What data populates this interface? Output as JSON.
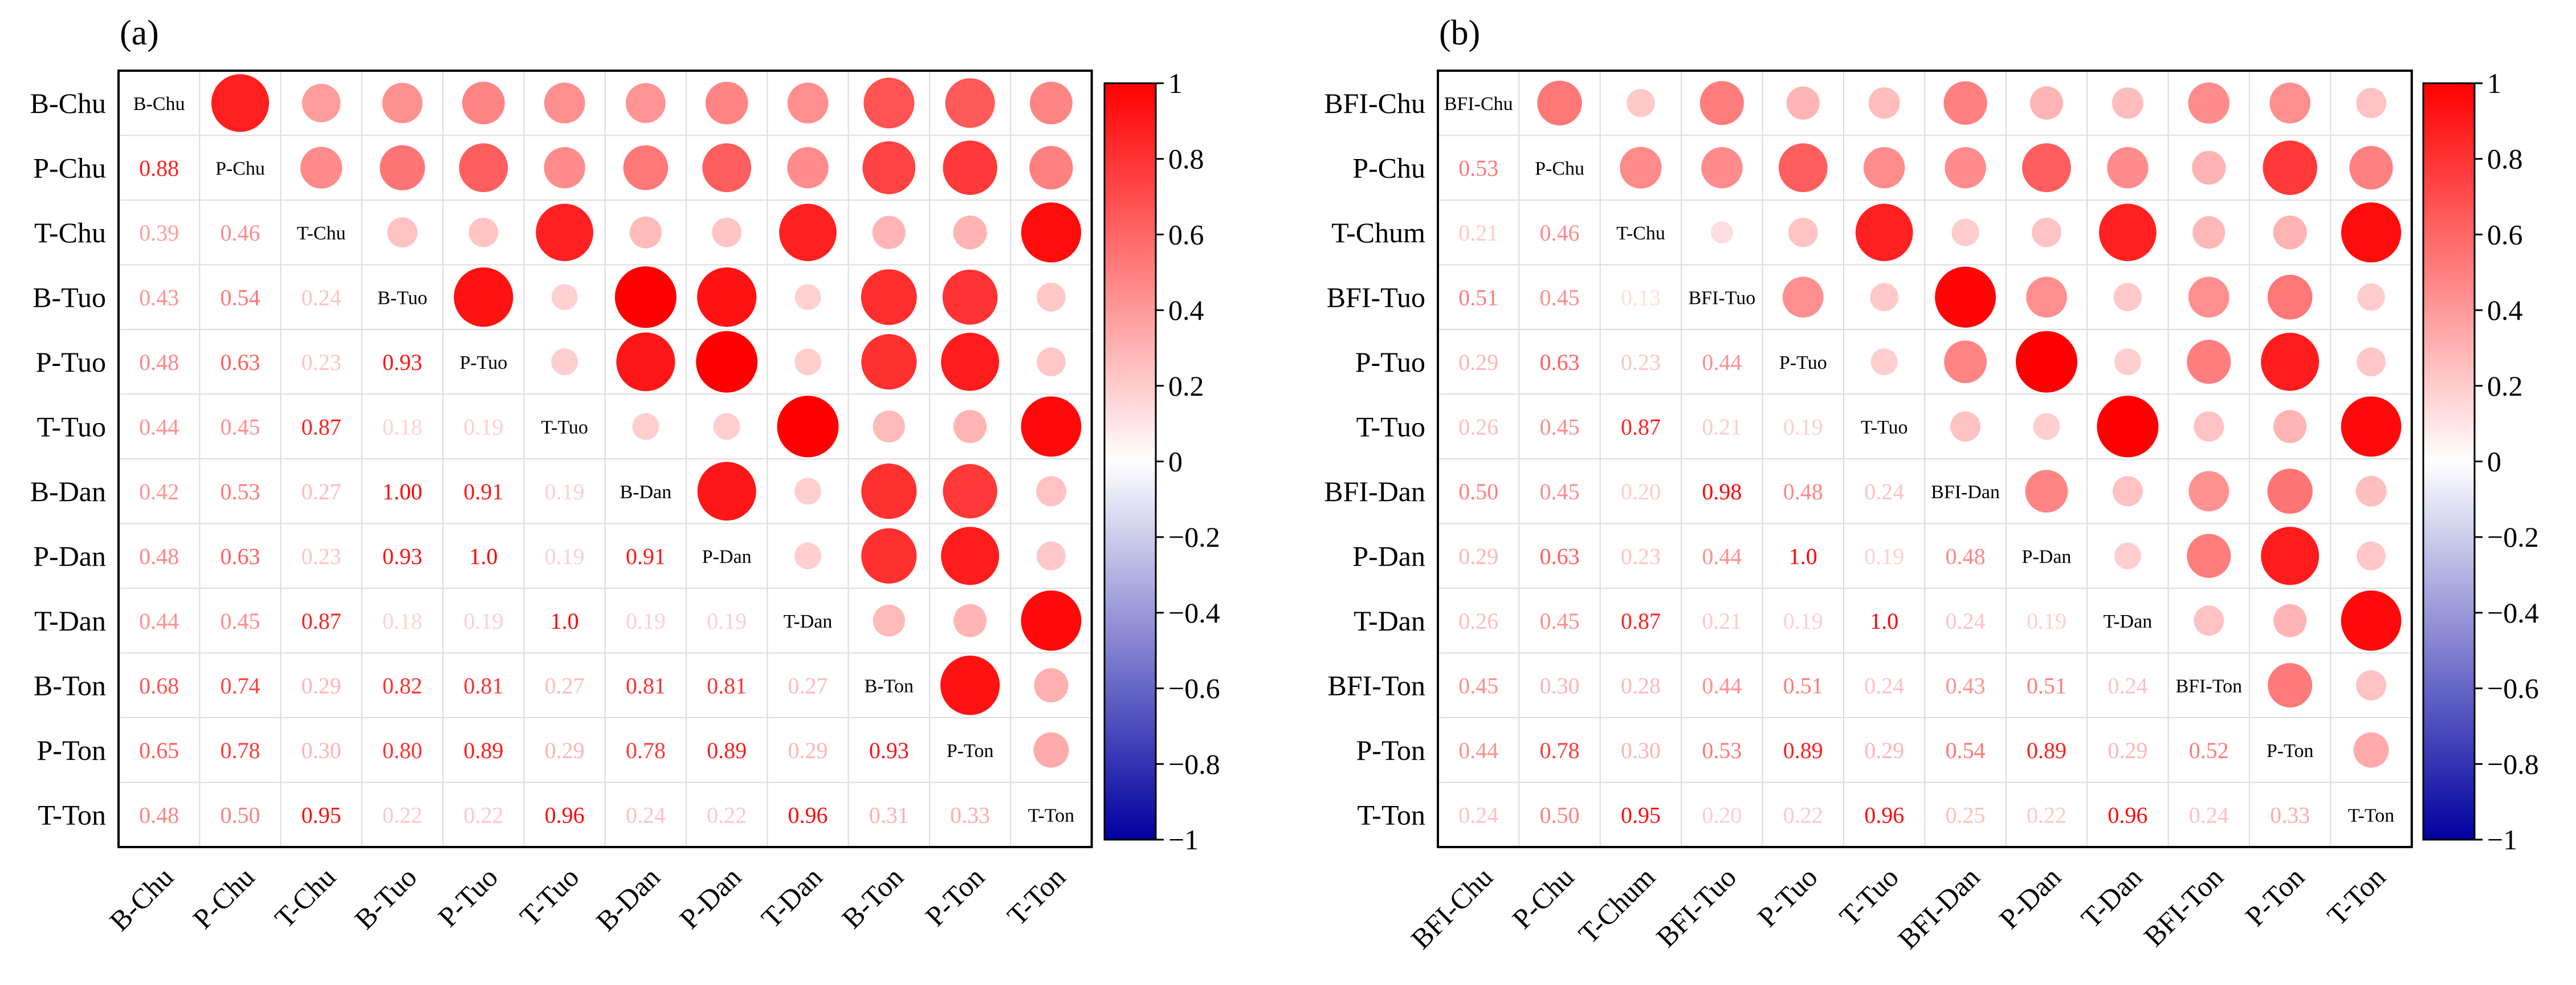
{
  "chart_data": [
    {
      "type": "heatmap",
      "panel_label": "(a)",
      "labels": [
        "B-Chu",
        "P-Chu",
        "T-Chu",
        "B-Tuo",
        "P-Tuo",
        "T-Tuo",
        "B-Dan",
        "P-Dan",
        "T-Dan",
        "B-Ton",
        "P-Ton",
        "T-Ton"
      ],
      "value_text": [
        [
          "",
          "",
          "",
          "",
          "",
          "",
          "",
          "",
          "",
          "",
          "",
          ""
        ],
        [
          "0.88",
          "",
          "",
          "",
          "",
          "",
          "",
          "",
          "",
          "",
          "",
          ""
        ],
        [
          "0.39",
          "0.46",
          "",
          "",
          "",
          "",
          "",
          "",
          "",
          "",
          "",
          ""
        ],
        [
          "0.43",
          "0.54",
          "0.24",
          "",
          "",
          "",
          "",
          "",
          "",
          "",
          "",
          ""
        ],
        [
          "0.48",
          "0.63",
          "0.23",
          "0.93",
          "",
          "",
          "",
          "",
          "",
          "",
          "",
          ""
        ],
        [
          "0.44",
          "0.45",
          "0.87",
          "0.18",
          "0.19",
          "",
          "",
          "",
          "",
          "",
          "",
          ""
        ],
        [
          "0.42",
          "0.53",
          "0.27",
          "1.00",
          "0.91",
          "0.19",
          "",
          "",
          "",
          "",
          "",
          ""
        ],
        [
          "0.48",
          "0.63",
          "0.23",
          "0.93",
          "1.0",
          "0.19",
          "0.91",
          "",
          "",
          "",
          "",
          ""
        ],
        [
          "0.44",
          "0.45",
          "0.87",
          "0.18",
          "0.19",
          "1.0",
          "0.19",
          "0.19",
          "",
          "",
          "",
          ""
        ],
        [
          "0.68",
          "0.74",
          "0.29",
          "0.82",
          "0.81",
          "0.27",
          "0.81",
          "0.81",
          "0.27",
          "",
          "",
          ""
        ],
        [
          "0.65",
          "0.78",
          "0.30",
          "0.80",
          "0.89",
          "0.29",
          "0.78",
          "0.89",
          "0.29",
          "0.93",
          "",
          ""
        ],
        [
          "0.48",
          "0.50",
          "0.95",
          "0.22",
          "0.22",
          "0.96",
          "0.24",
          "0.22",
          "0.96",
          "0.31",
          "0.33",
          ""
        ]
      ],
      "colorbar": {
        "range": [
          -1,
          1
        ],
        "ticks": [
          "1",
          "0.8",
          "0.6",
          "0.4",
          "0.2",
          "0",
          "−0.2",
          "−0.4",
          "−0.6",
          "−0.8",
          "−1"
        ]
      }
    },
    {
      "type": "heatmap",
      "panel_label": "(b)",
      "labels": [
        "BFI-Chu",
        "P-Chu",
        "T-Chum",
        "BFI-Tuo",
        "P-Tuo",
        "T-Tuo",
        "BFI-Dan",
        "P-Dan",
        "T-Dan",
        "BFI-Ton",
        "P-Ton",
        "T-Ton"
      ],
      "diag_labels": [
        "BFI-Chu",
        "P-Chu",
        "T-Chu",
        "BFI-Tuo",
        "P-Tuo",
        "T-Tuo",
        "BFI-Dan",
        "P-Dan",
        "T-Dan",
        "BFI-Ton",
        "P-Ton",
        "T-Ton"
      ],
      "value_text": [
        [
          "",
          "",
          "",
          "",
          "",
          "",
          "",
          "",
          "",
          "",
          "",
          ""
        ],
        [
          "0.53",
          "",
          "",
          "",
          "",
          "",
          "",
          "",
          "",
          "",
          "",
          ""
        ],
        [
          "0.21",
          "0.46",
          "",
          "",
          "",
          "",
          "",
          "",
          "",
          "",
          "",
          ""
        ],
        [
          "0.51",
          "0.45",
          "0.13",
          "",
          "",
          "",
          "",
          "",
          "",
          "",
          "",
          ""
        ],
        [
          "0.29",
          "0.63",
          "0.23",
          "0.44",
          "",
          "",
          "",
          "",
          "",
          "",
          "",
          ""
        ],
        [
          "0.26",
          "0.45",
          "0.87",
          "0.21",
          "0.19",
          "",
          "",
          "",
          "",
          "",
          "",
          ""
        ],
        [
          "0.50",
          "0.45",
          "0.20",
          "0.98",
          "0.48",
          "0.24",
          "",
          "",
          "",
          "",
          "",
          ""
        ],
        [
          "0.29",
          "0.63",
          "0.23",
          "0.44",
          "1.0",
          "0.19",
          "0.48",
          "",
          "",
          "",
          "",
          ""
        ],
        [
          "0.26",
          "0.45",
          "0.87",
          "0.21",
          "0.19",
          "1.0",
          "0.24",
          "0.19",
          "",
          "",
          "",
          ""
        ],
        [
          "0.45",
          "0.30",
          "0.28",
          "0.44",
          "0.51",
          "0.24",
          "0.43",
          "0.51",
          "0.24",
          "",
          "",
          ""
        ],
        [
          "0.44",
          "0.78",
          "0.30",
          "0.53",
          "0.89",
          "0.29",
          "0.54",
          "0.89",
          "0.29",
          "0.52",
          "",
          ""
        ],
        [
          "0.24",
          "0.50",
          "0.95",
          "0.20",
          "0.22",
          "0.96",
          "0.25",
          "0.22",
          "0.96",
          "0.24",
          "0.33",
          ""
        ]
      ],
      "colorbar": {
        "range": [
          -1,
          1
        ],
        "ticks": [
          "1",
          "0.8",
          "0.6",
          "0.4",
          "0.2",
          "0",
          "−0.2",
          "−0.4",
          "−0.6",
          "−0.8",
          "−1"
        ]
      }
    }
  ],
  "colors": {
    "positive": "#ff0000",
    "negative": "#0000a0",
    "neutral": "#ffffff",
    "grid": "#dddddd",
    "frame": "#000000"
  }
}
